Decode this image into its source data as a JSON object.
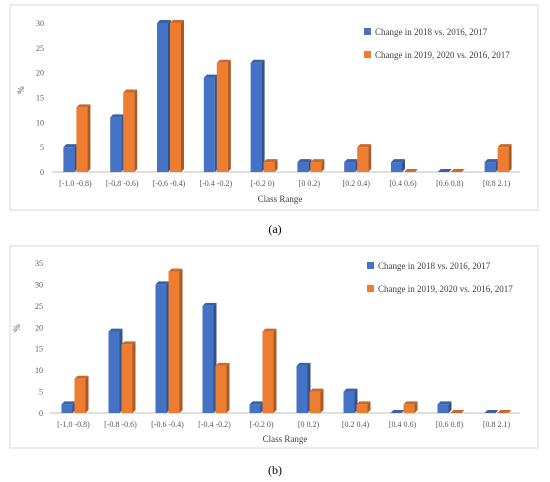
{
  "chart_data": [
    {
      "type": "bar",
      "caption": "(a)",
      "categories": [
        "[-1.0 -0.8)",
        "[-0.8 -0.6)",
        "[-0.6 -0.4)",
        "[-0.4 -0.2)",
        "[-0.2 0)",
        "[0 0.2)",
        "[0.2 0.4)",
        "[0.4 0.6)",
        "[0.6 0.8)",
        "[0.8 2.1)"
      ],
      "series": [
        {
          "name": "Change in 2018 vs. 2016, 2017",
          "values": [
            5,
            11,
            30,
            19,
            22,
            2,
            2,
            2,
            0,
            2
          ]
        },
        {
          "name": "Change in 2019, 2020 vs. 2016, 2017",
          "values": [
            13,
            16,
            30,
            22,
            2,
            2,
            5,
            0,
            0,
            5
          ]
        }
      ],
      "xlabel": "Class Range",
      "ylabel": "%",
      "ylim": [
        0,
        30
      ],
      "yticks": [
        0,
        5,
        10,
        15,
        20,
        25,
        30
      ],
      "grid": false,
      "legend_position": "top-right",
      "colors": [
        "#4472C4",
        "#ED7D31"
      ]
    },
    {
      "type": "bar",
      "caption": "(b)",
      "categories": [
        "[-1.0 -0.8)",
        "[-0.8 -0.6)",
        "[-0.6 -0.4)",
        "[-0.4 -0.2)",
        "[-0.2 0)",
        "[0 0.2)",
        "[0.2 0.4)",
        "[0.4 0.6)",
        "[0.6 0.8)",
        "[0.8 2.1)"
      ],
      "series": [
        {
          "name": "Change in 2018 vs. 2016, 2017",
          "values": [
            2,
            19,
            30,
            25,
            2,
            11,
            5,
            0,
            2,
            0
          ]
        },
        {
          "name": "Change in 2019, 2020 vs. 2016, 2017",
          "values": [
            8,
            16,
            33,
            11,
            19,
            5,
            2,
            2,
            0,
            0
          ]
        }
      ],
      "xlabel": "Class Range",
      "ylabel": "%",
      "ylim": [
        0,
        35
      ],
      "yticks": [
        0,
        5,
        10,
        15,
        20,
        25,
        30,
        35
      ],
      "grid": false,
      "legend_position": "top-right",
      "colors": [
        "#4472C4",
        "#ED7D31"
      ]
    }
  ]
}
